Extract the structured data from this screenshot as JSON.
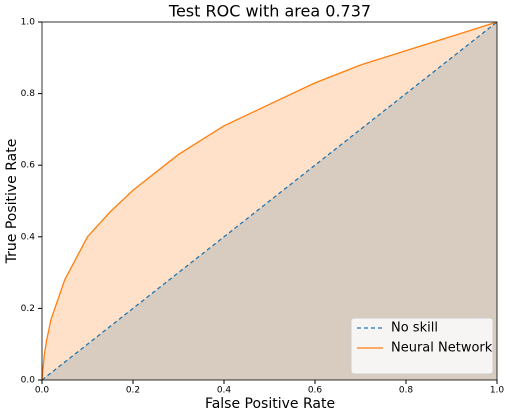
{
  "chart_data": {
    "type": "line",
    "title": "Test ROC with area 0.737",
    "x_label": "False Positive Rate",
    "y_label": "True Positive Rate",
    "xlim": [
      0,
      1
    ],
    "ylim": [
      0,
      1
    ],
    "xticks": [
      {
        "value": 0,
        "label": "0.0"
      },
      0.2,
      0.4,
      0.6,
      0.8,
      {
        "value": 1,
        "label": "1.0"
      }
    ],
    "yticks": [
      {
        "value": 0,
        "label": "0.0"
      },
      0.2,
      0.4,
      0.6,
      0.8,
      {
        "value": 1,
        "label": "1.0"
      }
    ],
    "legend": "lower right",
    "series": [
      {
        "name": "No skill",
        "color": "#1f77b4",
        "fill": "#d8ccc0",
        "dashed": true,
        "x": [
          0,
          1
        ],
        "values": [
          0,
          1
        ]
      },
      {
        "name": "Neural Network",
        "color": "#ff7f0e",
        "fill": "#ffe0c8",
        "dashed": false,
        "x": [
          0,
          0.005,
          0.01,
          0.02,
          0.05,
          0.1,
          0.15,
          0.2,
          0.3,
          0.4,
          0.5,
          0.6,
          0.7,
          0.8,
          0.9,
          1
        ],
        "values": [
          0,
          0.07,
          0.11,
          0.17,
          0.28,
          0.4,
          0.47,
          0.53,
          0.63,
          0.71,
          0.77,
          0.83,
          0.88,
          0.92,
          0.96,
          1
        ]
      }
    ]
  }
}
